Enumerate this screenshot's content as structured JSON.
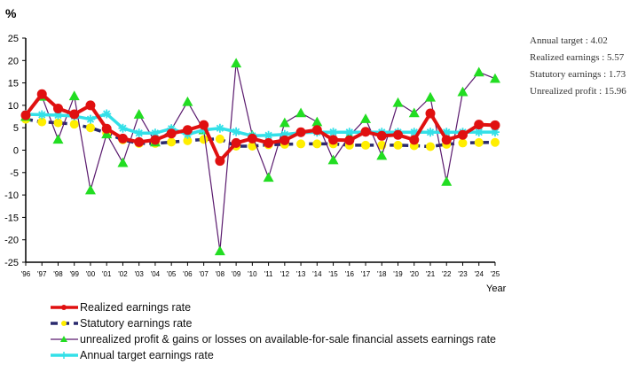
{
  "chart_data": {
    "type": "line",
    "ylabel": "%",
    "xlabel": "Year",
    "ylim": [
      -25,
      25
    ],
    "yticks": [
      25,
      20,
      15,
      10,
      5,
      0,
      -5,
      -10,
      -15,
      -20,
      -25
    ],
    "categories": [
      "'96",
      "'97",
      "'98",
      "'99",
      "'00",
      "'01",
      "'02",
      "'03",
      "'04",
      "'05",
      "'06",
      "'07",
      "'08",
      "'09",
      "'10",
      "'11",
      "'12",
      "'13",
      "'14",
      "'15",
      "'16",
      "'17",
      "'18",
      "'19",
      "'20",
      "'21",
      "'22",
      "'23",
      "'24",
      "'25"
    ],
    "series": [
      {
        "name": "Realized earnings rate",
        "color": "#e01010",
        "values": [
          7.8,
          12.5,
          9.3,
          8.0,
          10.0,
          4.8,
          2.6,
          1.8,
          2.3,
          3.7,
          4.5,
          5.6,
          -2.4,
          1.6,
          2.6,
          1.6,
          2.2,
          4.0,
          4.5,
          2.3,
          2.2,
          4.1,
          3.2,
          3.4,
          2.3,
          8.2,
          2.3,
          3.4,
          5.7,
          5.57
        ]
      },
      {
        "name": "Statutory earnings rate",
        "color": "#2a2a6e",
        "marker_color": "#ffee00",
        "values": [
          6.9,
          6.3,
          6.1,
          5.8,
          5.0,
          3.8,
          2.3,
          1.5,
          1.5,
          1.8,
          2.1,
          2.4,
          2.5,
          0.9,
          0.9,
          1.2,
          1.3,
          1.4,
          1.4,
          1.4,
          1.1,
          1.1,
          1.1,
          1.1,
          1.0,
          0.8,
          1.3,
          1.6,
          1.7,
          1.73
        ]
      },
      {
        "name": "unrealized profit & gains or losses on available-for-sale financial assets earnings rate",
        "color": "#5a1a6e",
        "marker_color": "#22dd22",
        "values": [
          7.5,
          12.0,
          2.4,
          12.1,
          -8.9,
          3.6,
          -2.8,
          8.0,
          1.8,
          4.6,
          10.8,
          4.5,
          -22.5,
          19.4,
          3.3,
          -6.1,
          6.1,
          8.3,
          6.3,
          -2.2,
          3.2,
          7.0,
          -1.2,
          10.6,
          8.3,
          11.8,
          -7.0,
          13.0,
          17.4,
          15.96
        ]
      },
      {
        "name": "Annual target earnings rate",
        "color": "#33e0e8",
        "values": [
          8.0,
          7.9,
          7.8,
          7.6,
          6.9,
          8.1,
          4.9,
          3.8,
          3.8,
          4.8,
          3.5,
          4.5,
          4.9,
          4.1,
          3.2,
          3.3,
          3.5,
          3.9,
          4.0,
          4.0,
          4.0,
          4.0,
          4.0,
          4.0,
          4.0,
          4.0,
          4.0,
          4.0,
          4.02,
          4.02
        ]
      }
    ],
    "annotations": [
      "Annual target : 4.02",
      "Realized earnings : 5.57",
      "Statutory earnings : 1.73",
      "Unrealized profit : 15.96"
    ],
    "legend_position": "bottom-left",
    "grid": false
  }
}
